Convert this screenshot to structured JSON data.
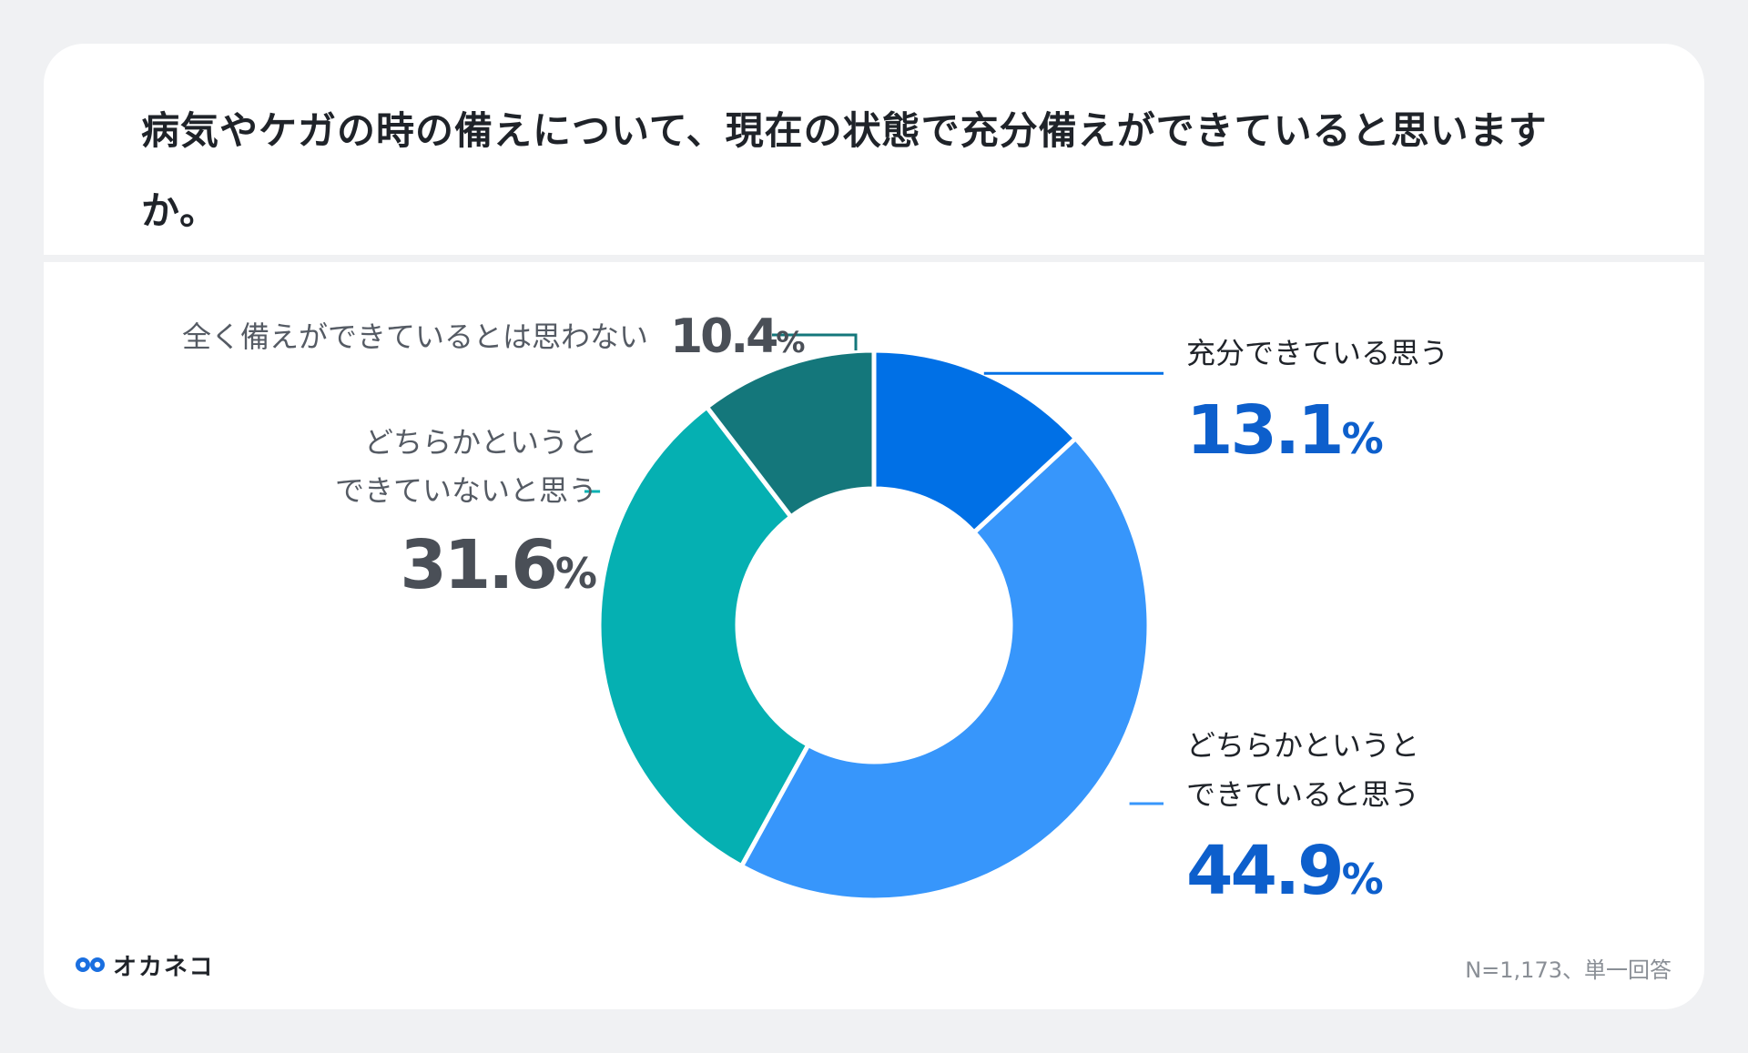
{
  "title": "病気やケガの時の備えについて、現在の状態で充分備えができていると思いますか。",
  "footnote": "N=1,173、単一回答",
  "brand": {
    "name": "オカネコ",
    "logo_icon": "okaneko-logo-icon"
  },
  "colors": {
    "segment_1": "#0070e6",
    "segment_2": "#3796fb",
    "segment_3": "#05b0b2",
    "segment_4": "#14777b",
    "label_blue": "#0d5fcc",
    "label_gray": "#4a4f57"
  },
  "chart_data": {
    "type": "pie",
    "donut": true,
    "categories": [
      "充分できている思う",
      "どちらかというとできていると思う",
      "どちらかというとできていないと思う",
      "全く備えができているとは思わない"
    ],
    "values": [
      13.1,
      44.9,
      31.6,
      10.4
    ],
    "value_labels": [
      "13.1",
      "44.9",
      "31.6",
      "10.4"
    ],
    "unit": "%",
    "labels": {
      "seg1": {
        "line1": "充分できている思う"
      },
      "seg2": {
        "line1": "どちらかというと",
        "line2": "できていると思う"
      },
      "seg3": {
        "line1": "どちらかというと",
        "line2": "できていないと思う"
      },
      "seg4": {
        "line1": "全く備えができているとは思わない"
      }
    }
  }
}
